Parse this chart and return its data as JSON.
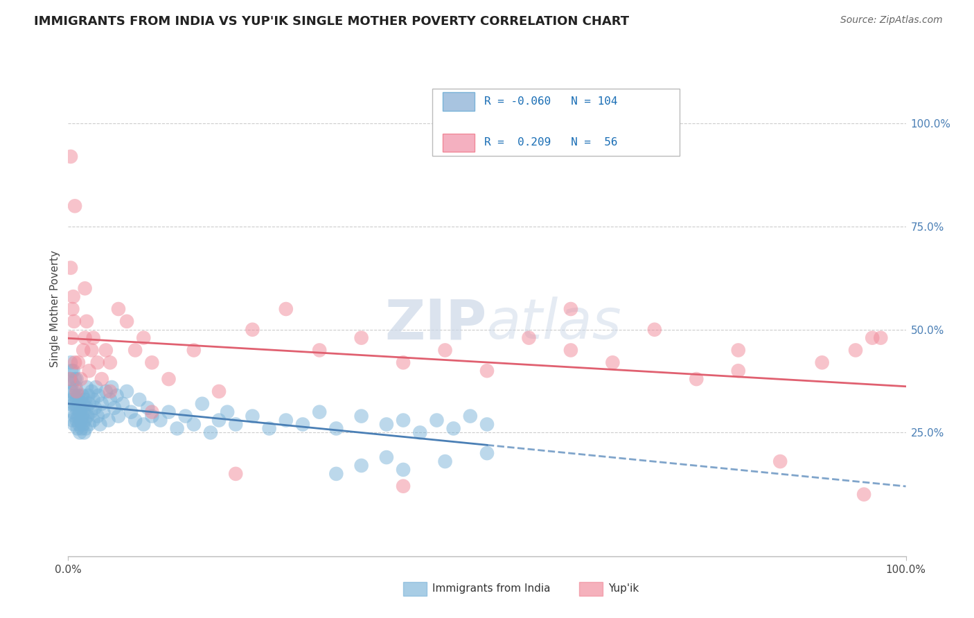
{
  "title": "IMMIGRANTS FROM INDIA VS YUP'IK SINGLE MOTHER POVERTY CORRELATION CHART",
  "source": "Source: ZipAtlas.com",
  "ylabel": "Single Mother Poverty",
  "xlim": [
    0.0,
    1.0
  ],
  "ylim": [
    -0.05,
    1.15
  ],
  "y_tick_vals": [
    0.25,
    0.5,
    0.75,
    1.0
  ],
  "india_R": -0.06,
  "india_N": 104,
  "yupik_R": 0.209,
  "yupik_N": 56,
  "india_color": "#7ab3d8",
  "yupik_color": "#f08898",
  "india_line_color": "#4a7fb5",
  "yupik_line_color": "#e06070",
  "legend_box_color": "#a8c4e0",
  "legend_pink_color": "#f4b0c0",
  "watermark_color": "#ccd8e8",
  "background_color": "#ffffff",
  "grid_color": "#cccccc",
  "india_x": [
    0.002,
    0.003,
    0.003,
    0.004,
    0.004,
    0.005,
    0.005,
    0.005,
    0.006,
    0.006,
    0.006,
    0.007,
    0.007,
    0.008,
    0.008,
    0.008,
    0.009,
    0.009,
    0.01,
    0.01,
    0.01,
    0.011,
    0.011,
    0.012,
    0.012,
    0.013,
    0.013,
    0.014,
    0.014,
    0.015,
    0.015,
    0.016,
    0.016,
    0.017,
    0.017,
    0.018,
    0.018,
    0.019,
    0.019,
    0.02,
    0.02,
    0.021,
    0.022,
    0.022,
    0.023,
    0.024,
    0.025,
    0.025,
    0.027,
    0.028,
    0.03,
    0.03,
    0.032,
    0.033,
    0.035,
    0.036,
    0.038,
    0.04,
    0.042,
    0.045,
    0.048,
    0.05,
    0.052,
    0.055,
    0.058,
    0.06,
    0.065,
    0.07,
    0.075,
    0.08,
    0.085,
    0.09,
    0.095,
    0.1,
    0.11,
    0.12,
    0.13,
    0.14,
    0.15,
    0.16,
    0.17,
    0.18,
    0.19,
    0.2,
    0.22,
    0.24,
    0.26,
    0.28,
    0.3,
    0.32,
    0.35,
    0.38,
    0.4,
    0.42,
    0.44,
    0.46,
    0.48,
    0.5,
    0.32,
    0.35,
    0.38,
    0.4,
    0.45,
    0.5
  ],
  "india_y": [
    0.32,
    0.38,
    0.42,
    0.35,
    0.4,
    0.28,
    0.33,
    0.37,
    0.3,
    0.35,
    0.4,
    0.27,
    0.32,
    0.29,
    0.34,
    0.38,
    0.31,
    0.36,
    0.28,
    0.33,
    0.38,
    0.26,
    0.31,
    0.29,
    0.34,
    0.27,
    0.32,
    0.25,
    0.3,
    0.28,
    0.33,
    0.26,
    0.31,
    0.29,
    0.34,
    0.27,
    0.32,
    0.25,
    0.3,
    0.28,
    0.33,
    0.26,
    0.31,
    0.36,
    0.29,
    0.34,
    0.27,
    0.32,
    0.3,
    0.35,
    0.28,
    0.33,
    0.31,
    0.36,
    0.29,
    0.34,
    0.27,
    0.32,
    0.3,
    0.35,
    0.28,
    0.33,
    0.36,
    0.31,
    0.34,
    0.29,
    0.32,
    0.35,
    0.3,
    0.28,
    0.33,
    0.27,
    0.31,
    0.29,
    0.28,
    0.3,
    0.26,
    0.29,
    0.27,
    0.32,
    0.25,
    0.28,
    0.3,
    0.27,
    0.29,
    0.26,
    0.28,
    0.27,
    0.3,
    0.26,
    0.29,
    0.27,
    0.28,
    0.25,
    0.28,
    0.26,
    0.29,
    0.27,
    0.15,
    0.17,
    0.19,
    0.16,
    0.18,
    0.2
  ],
  "yupik_x": [
    0.002,
    0.003,
    0.004,
    0.005,
    0.006,
    0.007,
    0.008,
    0.01,
    0.012,
    0.015,
    0.018,
    0.02,
    0.022,
    0.025,
    0.028,
    0.03,
    0.035,
    0.04,
    0.045,
    0.05,
    0.06,
    0.07,
    0.08,
    0.09,
    0.1,
    0.12,
    0.15,
    0.18,
    0.22,
    0.26,
    0.3,
    0.35,
    0.4,
    0.45,
    0.5,
    0.55,
    0.6,
    0.65,
    0.7,
    0.75,
    0.8,
    0.85,
    0.9,
    0.94,
    0.96,
    0.003,
    0.008,
    0.02,
    0.05,
    0.1,
    0.2,
    0.4,
    0.6,
    0.8,
    0.95,
    0.97
  ],
  "yupik_y": [
    0.38,
    0.65,
    0.48,
    0.55,
    0.58,
    0.52,
    0.42,
    0.35,
    0.42,
    0.38,
    0.45,
    0.48,
    0.52,
    0.4,
    0.45,
    0.48,
    0.42,
    0.38,
    0.45,
    0.42,
    0.55,
    0.52,
    0.45,
    0.48,
    0.42,
    0.38,
    0.45,
    0.35,
    0.5,
    0.55,
    0.45,
    0.48,
    0.42,
    0.45,
    0.4,
    0.48,
    0.45,
    0.42,
    0.5,
    0.38,
    0.45,
    0.18,
    0.42,
    0.45,
    0.48,
    0.92,
    0.8,
    0.6,
    0.35,
    0.3,
    0.15,
    0.12,
    0.55,
    0.4,
    0.1,
    0.48
  ]
}
